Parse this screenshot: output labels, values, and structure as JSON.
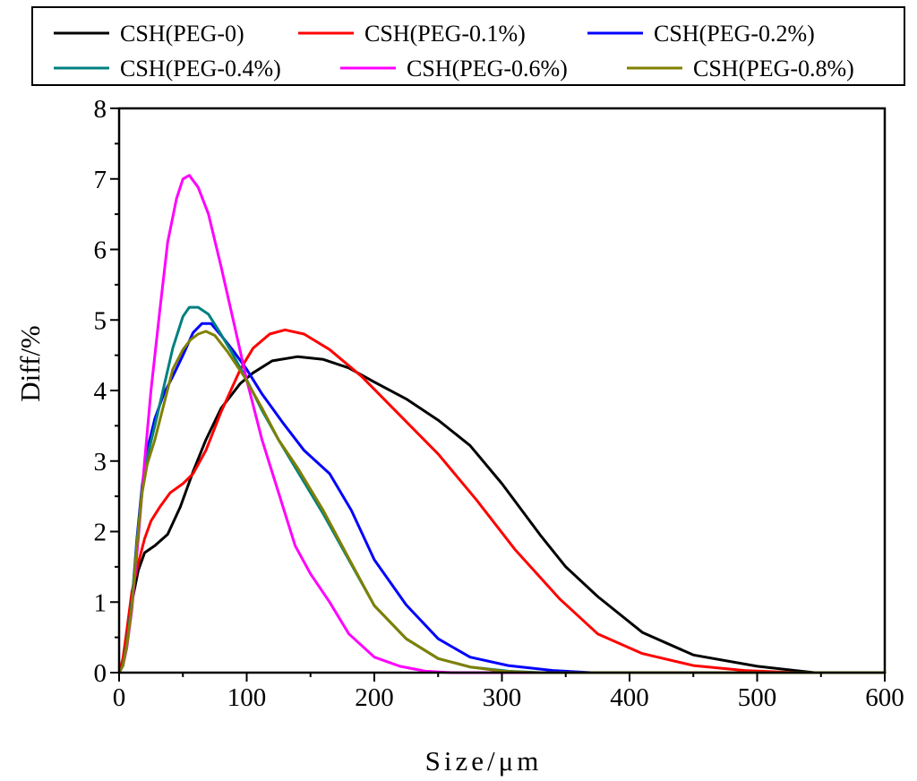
{
  "chart_data": {
    "type": "line",
    "title": "",
    "xlabel": "Size/μm",
    "ylabel": "Diff/%",
    "xlim": [
      0,
      600
    ],
    "ylim": [
      0,
      8
    ],
    "xticks": [
      0,
      100,
      200,
      300,
      400,
      500,
      600
    ],
    "yticks": [
      0,
      1,
      2,
      3,
      4,
      5,
      6,
      7,
      8
    ],
    "xtick_labels": [
      "0",
      "100",
      "200",
      "300",
      "400",
      "500",
      "600"
    ],
    "ytick_labels": [
      "0",
      "1",
      "2",
      "3",
      "4",
      "5",
      "6",
      "7",
      "8"
    ],
    "grid": false,
    "legend_position": "top",
    "series": [
      {
        "name": "CSH(PEG-0)",
        "color": "#000000",
        "x": [
          0,
          3,
          6,
          10,
          15,
          20,
          28,
          38,
          48,
          58,
          68,
          80,
          95,
          105,
          120,
          140,
          160,
          180,
          200,
          225,
          250,
          275,
          300,
          330,
          350,
          375,
          410,
          450,
          500,
          545,
          600
        ],
        "y": [
          0,
          0.15,
          0.5,
          1.0,
          1.45,
          1.7,
          1.8,
          1.96,
          2.35,
          2.85,
          3.3,
          3.75,
          4.1,
          4.25,
          4.42,
          4.48,
          4.44,
          4.32,
          4.12,
          3.88,
          3.58,
          3.22,
          2.68,
          1.95,
          1.5,
          1.08,
          0.57,
          0.25,
          0.09,
          0,
          0
        ]
      },
      {
        "name": "CSH(PEG-0.1%)",
        "color": "#ff0000",
        "x": [
          0,
          3,
          6,
          10,
          15,
          20,
          25,
          32,
          40,
          50,
          58,
          68,
          80,
          95,
          105,
          118,
          130,
          145,
          165,
          190,
          220,
          250,
          280,
          310,
          345,
          375,
          410,
          450,
          490,
          530,
          560,
          600
        ],
        "y": [
          0,
          0.2,
          0.6,
          1.15,
          1.55,
          1.9,
          2.15,
          2.35,
          2.55,
          2.68,
          2.82,
          3.15,
          3.7,
          4.3,
          4.6,
          4.8,
          4.86,
          4.8,
          4.58,
          4.2,
          3.65,
          3.1,
          2.45,
          1.75,
          1.05,
          0.55,
          0.27,
          0.1,
          0.03,
          0,
          0,
          0
        ]
      },
      {
        "name": "CSH(PEG-0.2%)",
        "color": "#0000ff",
        "x": [
          0,
          3,
          6,
          10,
          14,
          18,
          22,
          28,
          35,
          42,
          50,
          58,
          65,
          72,
          80,
          90,
          100,
          112,
          128,
          145,
          165,
          182,
          200,
          225,
          250,
          275,
          305,
          340,
          370,
          600
        ],
        "y": [
          0,
          0.1,
          0.4,
          1.0,
          1.9,
          2.65,
          3.15,
          3.6,
          3.95,
          4.2,
          4.5,
          4.82,
          4.95,
          4.95,
          4.78,
          4.55,
          4.3,
          3.95,
          3.55,
          3.15,
          2.82,
          2.3,
          1.6,
          0.96,
          0.48,
          0.22,
          0.1,
          0.03,
          0,
          0
        ]
      },
      {
        "name": "CSH(PEG-0.4%)",
        "color": "#008080",
        "x": [
          0,
          3,
          6,
          10,
          14,
          18,
          22,
          28,
          35,
          42,
          50,
          55,
          62,
          70,
          78,
          88,
          100,
          112,
          125,
          140,
          160,
          180,
          200,
          225,
          250,
          275,
          305,
          330,
          600
        ],
        "y": [
          0,
          0.1,
          0.4,
          1.0,
          1.85,
          2.6,
          3.05,
          3.5,
          4.05,
          4.6,
          5.05,
          5.18,
          5.18,
          5.08,
          4.85,
          4.55,
          4.15,
          3.72,
          3.3,
          2.85,
          2.25,
          1.6,
          0.95,
          0.48,
          0.2,
          0.08,
          0.02,
          0,
          0
        ]
      },
      {
        "name": "CSH(PEG-0.6%)",
        "color": "#ff00ff",
        "x": [
          0,
          3,
          6,
          10,
          15,
          20,
          25,
          32,
          38,
          45,
          50,
          55,
          62,
          70,
          80,
          90,
          100,
          112,
          125,
          138,
          150,
          165,
          180,
          200,
          220,
          240,
          260,
          600
        ],
        "y": [
          0,
          0.1,
          0.35,
          0.9,
          1.9,
          3.0,
          4.0,
          5.15,
          6.1,
          6.72,
          7.0,
          7.05,
          6.88,
          6.5,
          5.75,
          4.95,
          4.15,
          3.3,
          2.55,
          1.8,
          1.4,
          1.0,
          0.55,
          0.22,
          0.09,
          0.02,
          0,
          0
        ]
      },
      {
        "name": "CSH(PEG-0.8%)",
        "color": "#808000",
        "x": [
          0,
          3,
          6,
          10,
          14,
          18,
          22,
          28,
          35,
          42,
          50,
          56,
          62,
          68,
          75,
          85,
          98,
          112,
          125,
          140,
          160,
          180,
          200,
          225,
          250,
          275,
          300,
          325,
          600
        ],
        "y": [
          0,
          0.1,
          0.38,
          0.95,
          1.8,
          2.55,
          2.95,
          3.3,
          3.8,
          4.3,
          4.58,
          4.72,
          4.8,
          4.84,
          4.78,
          4.55,
          4.2,
          3.75,
          3.3,
          2.9,
          2.3,
          1.62,
          0.95,
          0.48,
          0.2,
          0.08,
          0.02,
          0,
          0
        ]
      }
    ]
  }
}
